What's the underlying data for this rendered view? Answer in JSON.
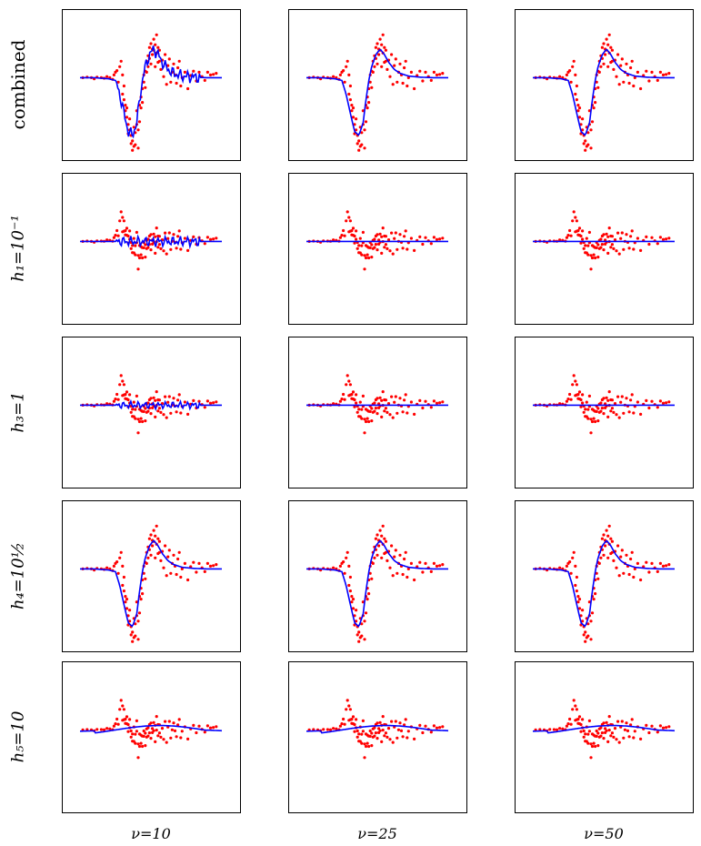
{
  "figure": {
    "row_labels": [
      "combined",
      "h₁=10⁻¹",
      "h₃=1",
      "h₄=10½",
      "h₅=10"
    ],
    "col_labels": [
      "ν=10",
      "ν=25",
      "ν=50"
    ]
  },
  "colors": {
    "points": "#ff0000",
    "curve": "#0000ff",
    "frame": "#000000"
  },
  "chart_data": {
    "type": "scatter",
    "layout": "grid 5 rows x 3 columns of small panels, no ticks, no axis numbers",
    "xlim": [
      0,
      1
    ],
    "ylim": [
      -1.4,
      1
    ],
    "grid": false,
    "points": {
      "x": [
        0.02,
        0.05,
        0.08,
        0.1,
        0.12,
        0.15,
        0.17,
        0.19,
        0.21,
        0.23,
        0.24,
        0.25,
        0.26,
        0.27,
        0.28,
        0.29,
        0.3,
        0.3,
        0.31,
        0.31,
        0.32,
        0.32,
        0.33,
        0.33,
        0.34,
        0.34,
        0.35,
        0.35,
        0.36,
        0.36,
        0.37,
        0.37,
        0.38,
        0.38,
        0.39,
        0.39,
        0.4,
        0.4,
        0.41,
        0.41,
        0.42,
        0.42,
        0.43,
        0.43,
        0.44,
        0.44,
        0.45,
        0.45,
        0.46,
        0.46,
        0.47,
        0.47,
        0.48,
        0.48,
        0.49,
        0.49,
        0.5,
        0.5,
        0.51,
        0.51,
        0.52,
        0.52,
        0.53,
        0.53,
        0.54,
        0.54,
        0.55,
        0.55,
        0.56,
        0.56,
        0.57,
        0.58,
        0.59,
        0.6,
        0.61,
        0.62,
        0.63,
        0.64,
        0.65,
        0.66,
        0.67,
        0.68,
        0.69,
        0.7,
        0.71,
        0.72,
        0.74,
        0.76,
        0.78,
        0.8,
        0.82,
        0.84,
        0.86,
        0.88,
        0.9,
        0.92,
        0.94,
        0.96
      ],
      "y": [
        0.0,
        0.01,
        0.0,
        -0.02,
        0.01,
        0.0,
        -0.01,
        0.02,
        0.0,
        -0.03,
        0.05,
        0.1,
        0.13,
        -0.08,
        0.2,
        0.3,
        0.05,
        -0.3,
        -0.4,
        -0.15,
        -0.5,
        -0.6,
        -0.72,
        -0.55,
        -0.85,
        -1.02,
        -0.75,
        -0.95,
        -1.2,
        -1.05,
        -1.15,
        -1.32,
        -1.25,
        -0.9,
        -1.22,
        -1.0,
        -0.85,
        -0.6,
        -1.28,
        -0.95,
        -0.8,
        -0.5,
        -0.55,
        -0.35,
        -0.2,
        -0.45,
        -0.08,
        0.05,
        0.12,
        -0.18,
        0.3,
        0.1,
        0.4,
        0.2,
        0.35,
        0.55,
        0.62,
        0.25,
        0.52,
        0.42,
        0.7,
        0.5,
        0.2,
        0.6,
        0.78,
        0.45,
        0.28,
        0.55,
        0.3,
        0.5,
        0.15,
        0.32,
        0.02,
        0.42,
        -0.12,
        0.22,
        0.34,
        -0.08,
        0.1,
        0.25,
        0.05,
        -0.1,
        0.18,
        0.3,
        -0.15,
        0.0,
        0.1,
        -0.2,
        0.04,
        0.12,
        -0.06,
        0.1,
        0.02,
        -0.05,
        0.1,
        0.05,
        0.06,
        0.08
      ]
    },
    "baseline": {
      "x": [
        0.0,
        0.1,
        0.2,
        0.25,
        0.28,
        0.31,
        0.34,
        0.37,
        0.4,
        0.42,
        0.44,
        0.46,
        0.49,
        0.52,
        0.55,
        0.58,
        0.62,
        0.66,
        0.72,
        0.8,
        0.9,
        1.0
      ],
      "y": [
        0.0,
        0.0,
        -0.02,
        -0.05,
        -0.3,
        -0.65,
        -0.98,
        -1.05,
        -0.82,
        -0.4,
        -0.05,
        0.2,
        0.42,
        0.52,
        0.42,
        0.28,
        0.15,
        0.08,
        0.03,
        0.01,
        0.0,
        0.0
      ]
    },
    "series": [
      {
        "row": 0,
        "col": 0,
        "curve": "baseline",
        "scale": 1.0,
        "wiggle": 0.12
      },
      {
        "row": 0,
        "col": 1,
        "curve": "baseline",
        "scale": 1.0,
        "wiggle": 0.0
      },
      {
        "row": 0,
        "col": 2,
        "curve": "baseline",
        "scale": 1.0,
        "wiggle": 0.0
      },
      {
        "row": 1,
        "col": 0,
        "curve": "flat",
        "scale": 0.0,
        "wiggle": 0.1
      },
      {
        "row": 1,
        "col": 1,
        "curve": "flat",
        "scale": 0.0,
        "wiggle": 0.0
      },
      {
        "row": 1,
        "col": 2,
        "curve": "flat",
        "scale": 0.0,
        "wiggle": 0.0
      },
      {
        "row": 2,
        "col": 0,
        "curve": "flat",
        "scale": 0.0,
        "wiggle": 0.07
      },
      {
        "row": 2,
        "col": 1,
        "curve": "flat",
        "scale": 0.03,
        "wiggle": 0.0
      },
      {
        "row": 2,
        "col": 2,
        "curve": "flat",
        "scale": 0.0,
        "wiggle": 0.0
      },
      {
        "row": 3,
        "col": 0,
        "curve": "baseline",
        "scale": 1.0,
        "wiggle": 0.0
      },
      {
        "row": 3,
        "col": 1,
        "curve": "baseline",
        "scale": 1.0,
        "wiggle": 0.0
      },
      {
        "row": 3,
        "col": 2,
        "curve": "baseline",
        "scale": 1.0,
        "wiggle": 0.0
      },
      {
        "row": 4,
        "col": 0,
        "curve": "smooth",
        "scale": 0.08,
        "wiggle": 0.0
      },
      {
        "row": 4,
        "col": 1,
        "curve": "smooth",
        "scale": 0.08,
        "wiggle": 0.0
      },
      {
        "row": 4,
        "col": 2,
        "curve": "smooth",
        "scale": 0.08,
        "wiggle": 0.0
      }
    ]
  }
}
